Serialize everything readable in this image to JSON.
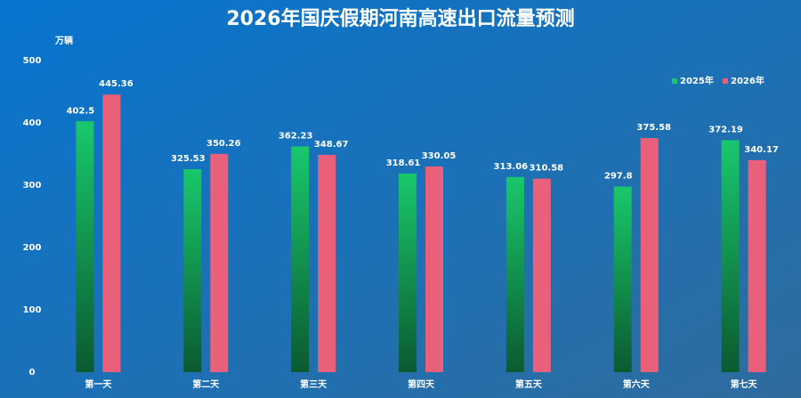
{
  "chart_data": {
    "type": "bar",
    "title": "2026年国庆假期河南高速出口流量预测",
    "y_label": "万辆",
    "categories": [
      "第一天",
      "第二天",
      "第三天",
      "第四天",
      "第五天",
      "第六天",
      "第七天"
    ],
    "series": [
      {
        "name": "2025年",
        "color": "#19c86c",
        "values": [
          402.5,
          325.53,
          362.23,
          318.61,
          313.06,
          297.8,
          372.19
        ]
      },
      {
        "name": "2026年",
        "color": "#e8607a",
        "values": [
          445.36,
          350.26,
          348.67,
          330.05,
          310.58,
          375.58,
          340.17
        ]
      }
    ],
    "ylim": [
      0,
      500
    ],
    "yticks": [
      0,
      100,
      200,
      300,
      400,
      500
    ],
    "grid": false,
    "legend": "upper right"
  }
}
